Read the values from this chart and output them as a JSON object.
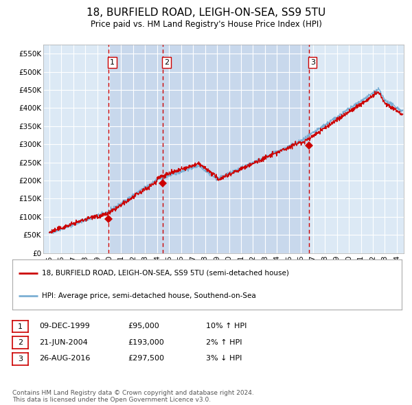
{
  "title": "18, BURFIELD ROAD, LEIGH-ON-SEA, SS9 5TU",
  "subtitle": "Price paid vs. HM Land Registry's House Price Index (HPI)",
  "bg_color": "#dce9f5",
  "grid_color": "#ffffff",
  "hpi_line_color": "#7bafd4",
  "price_line_color": "#cc0000",
  "marker_color": "#cc0000",
  "vline_color": "#cc0000",
  "shade_color": "#c8d8ec",
  "ylim": [
    0,
    575000
  ],
  "yticks": [
    0,
    50000,
    100000,
    150000,
    200000,
    250000,
    300000,
    350000,
    400000,
    450000,
    500000,
    550000
  ],
  "ytick_labels": [
    "£0",
    "£50K",
    "£100K",
    "£150K",
    "£200K",
    "£250K",
    "£300K",
    "£350K",
    "£400K",
    "£450K",
    "£500K",
    "£550K"
  ],
  "xlim_start": 1994.5,
  "xlim_end": 2024.58,
  "xticks": [
    1995,
    1996,
    1997,
    1998,
    1999,
    2000,
    2001,
    2002,
    2003,
    2004,
    2005,
    2006,
    2007,
    2008,
    2009,
    2010,
    2011,
    2012,
    2013,
    2014,
    2015,
    2016,
    2017,
    2018,
    2019,
    2020,
    2021,
    2022,
    2023,
    2024
  ],
  "sale1_date": 1999.94,
  "sale1_price": 95000,
  "sale2_date": 2004.47,
  "sale2_price": 193000,
  "sale3_date": 2016.65,
  "sale3_price": 297500,
  "legend_entries": [
    "18, BURFIELD ROAD, LEIGH-ON-SEA, SS9 5TU (semi-detached house)",
    "HPI: Average price, semi-detached house, Southend-on-Sea"
  ],
  "table_rows": [
    [
      "1",
      "09-DEC-1999",
      "£95,000",
      "10% ↑ HPI"
    ],
    [
      "2",
      "21-JUN-2004",
      "£193,000",
      "2% ↑ HPI"
    ],
    [
      "3",
      "26-AUG-2016",
      "£297,500",
      "3% ↓ HPI"
    ]
  ],
  "footer": "Contains HM Land Registry data © Crown copyright and database right 2024.\nThis data is licensed under the Open Government Licence v3.0."
}
